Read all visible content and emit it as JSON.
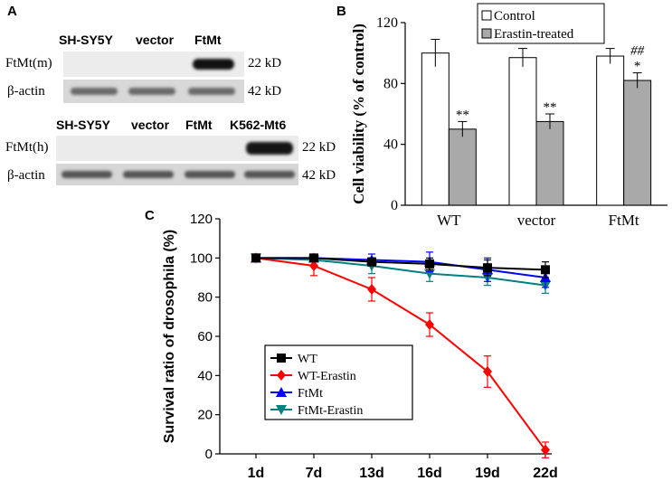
{
  "panelA": {
    "label": "A",
    "blot_m": {
      "lanes": [
        "SH-SY5Y",
        "vector",
        "FtMt"
      ],
      "rows": [
        {
          "name": "FtMt(m)",
          "size": "22 kD"
        },
        {
          "name": "β-actin",
          "size": "42 kD"
        }
      ]
    },
    "blot_h": {
      "lanes": [
        "SH-SY5Y",
        "vector",
        "FtMt",
        "K562-Mt6"
      ],
      "rows": [
        {
          "name": "FtMt(h)",
          "size": "22 kD"
        },
        {
          "name": "β-actin",
          "size": "42 kD"
        }
      ]
    }
  },
  "chart_data": [
    {
      "panel": "B",
      "type": "bar",
      "categories": [
        "WT",
        "vector",
        "FtMt"
      ],
      "series": [
        {
          "name": "Control",
          "color": "#ffffff",
          "values": [
            100,
            97,
            98
          ],
          "errors": [
            9,
            6,
            5
          ],
          "annotations": [
            "",
            "",
            ""
          ]
        },
        {
          "name": "Erastin-treated",
          "color": "#a9a9a9",
          "values": [
            50,
            55,
            82
          ],
          "errors": [
            5,
            5,
            5
          ],
          "annotations": [
            "**",
            "**",
            "*"
          ]
        }
      ],
      "extra_annotations": [
        {
          "category": "FtMt",
          "text": "##"
        }
      ],
      "ylabel": "Cell viability (% of control)",
      "xlabel": "",
      "ylim": [
        0,
        120
      ],
      "yticks": [
        "0",
        "40",
        "80",
        "120"
      ],
      "legend": "top-right"
    },
    {
      "panel": "C",
      "type": "line",
      "x": [
        "1d",
        "7d",
        "13d",
        "16d",
        "19d",
        "22d"
      ],
      "ylabel": "Survival ratio of drosophila (%)",
      "xlabel": "",
      "ylim": [
        0,
        120
      ],
      "yticks": [
        "0",
        "20",
        "40",
        "60",
        "80",
        "100",
        "120"
      ],
      "legend": "lower-left",
      "series": [
        {
          "name": "WT",
          "color": "#000000",
          "marker": "square",
          "values": [
            100,
            100,
            98,
            97,
            95,
            94
          ],
          "errors": [
            1,
            1,
            2,
            3,
            4,
            4
          ]
        },
        {
          "name": "WT-Erastin",
          "color": "#ff0000",
          "marker": "diamond",
          "values": [
            100,
            96,
            84,
            66,
            42,
            2
          ],
          "errors": [
            1,
            5,
            6,
            6,
            8,
            4
          ]
        },
        {
          "name": "FtMt",
          "color": "#0000ff",
          "marker": "triangle",
          "values": [
            100,
            100,
            99,
            98,
            94,
            90
          ],
          "errors": [
            1,
            1,
            3,
            5,
            6,
            5
          ]
        },
        {
          "name": "FtMt-Erastin",
          "color": "#008080",
          "marker": "triangle-down",
          "values": [
            100,
            99,
            96,
            92,
            90,
            86
          ],
          "errors": [
            1,
            1,
            4,
            4,
            4,
            4
          ]
        }
      ]
    }
  ]
}
